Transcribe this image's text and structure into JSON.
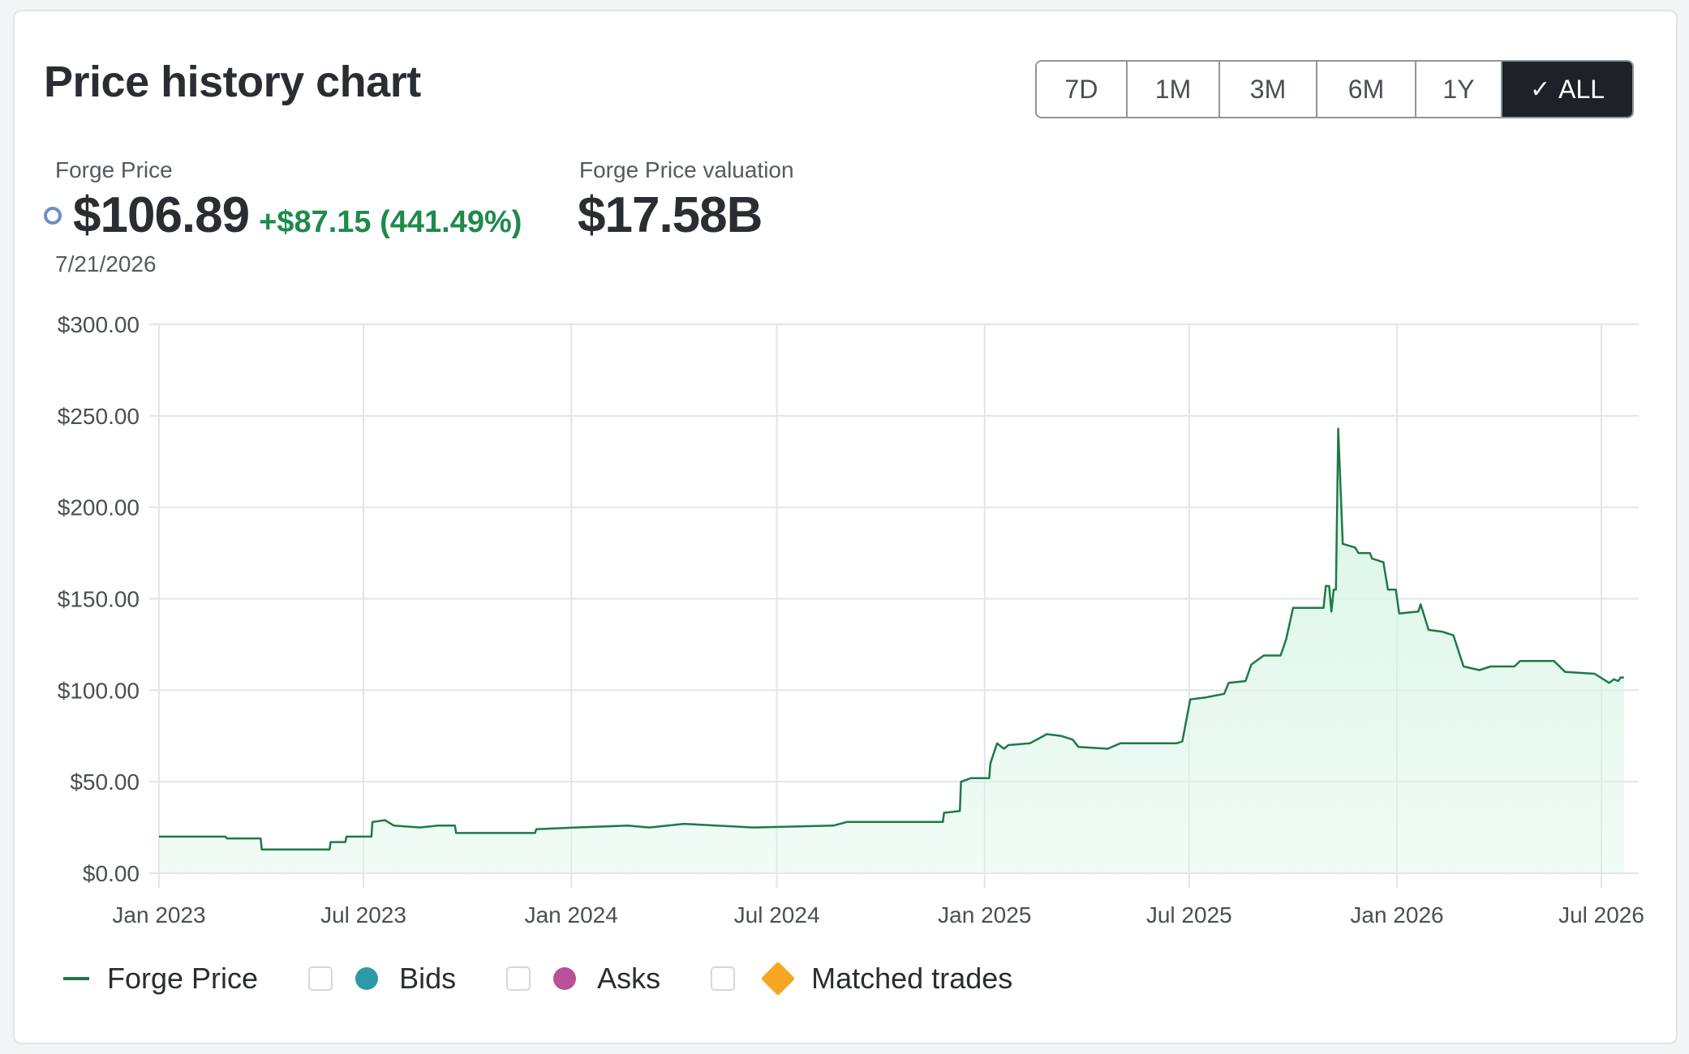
{
  "header": {
    "title": "Price history chart"
  },
  "range_buttons": {
    "items": [
      "7D",
      "1M",
      "3M",
      "6M",
      "1Y",
      "ALL"
    ],
    "active": "ALL",
    "check_glyph": "✓"
  },
  "stats": {
    "price_label": "Forge Price",
    "price_value": "$106.89",
    "price_change": "+$87.15 (441.49%)",
    "price_date": "7/21/2026",
    "valuation_label": "Forge Price valuation",
    "valuation_value": "$17.58B"
  },
  "legend": {
    "forge_price": "Forge Price",
    "bids": "Bids",
    "asks": "Asks",
    "matched_trades": "Matched trades"
  },
  "colors": {
    "line": "#1e7a46",
    "fill": "#d8f5e6",
    "positive": "#1e8a4c",
    "bids": "#2e9aa8",
    "asks": "#b8509a",
    "matched_trades": "#f5a623",
    "grid": "#e3e5e8"
  },
  "chart_data": {
    "type": "area",
    "ylim": [
      0,
      300
    ],
    "y_ticks": [
      "$0.00",
      "$50.00",
      "$100.00",
      "$150.00",
      "$200.00",
      "$250.00",
      "$300.00"
    ],
    "x_ticks": [
      {
        "label": "Jan 2023",
        "date": "2023-01-01"
      },
      {
        "label": "Jul 2023",
        "date": "2023-07-01"
      },
      {
        "label": "Jan 2024",
        "date": "2024-01-01"
      },
      {
        "label": "Jul 2024",
        "date": "2024-07-01"
      },
      {
        "label": "Jan 2025",
        "date": "2025-01-01"
      },
      {
        "label": "Jul 2025",
        "date": "2025-07-01"
      },
      {
        "label": "Jan 2026",
        "date": "2026-01-01"
      },
      {
        "label": "Jul 2026",
        "date": "2026-07-01"
      }
    ],
    "xlim": [
      "2023-01-01",
      "2026-07-21"
    ],
    "grid": true,
    "legend_position": "bottom-left",
    "series": [
      {
        "name": "Forge Price",
        "points": [
          [
            "2023-01-01",
            20
          ],
          [
            "2023-03-01",
            20
          ],
          [
            "2023-03-02",
            19
          ],
          [
            "2023-04-01",
            19
          ],
          [
            "2023-04-02",
            13
          ],
          [
            "2023-06-01",
            13
          ],
          [
            "2023-06-02",
            17
          ],
          [
            "2023-06-15",
            17
          ],
          [
            "2023-06-16",
            20
          ],
          [
            "2023-07-08",
            20
          ],
          [
            "2023-07-09",
            28
          ],
          [
            "2023-07-20",
            29
          ],
          [
            "2023-07-28",
            26
          ],
          [
            "2023-08-20",
            25
          ],
          [
            "2023-09-05",
            26
          ],
          [
            "2023-09-20",
            26
          ],
          [
            "2023-09-21",
            22
          ],
          [
            "2023-11-30",
            22
          ],
          [
            "2023-12-01",
            24
          ],
          [
            "2024-01-05",
            25
          ],
          [
            "2024-02-20",
            26
          ],
          [
            "2024-03-10",
            25
          ],
          [
            "2024-04-10",
            27
          ],
          [
            "2024-06-10",
            25
          ],
          [
            "2024-08-20",
            26
          ],
          [
            "2024-09-01",
            28
          ],
          [
            "2024-11-25",
            28
          ],
          [
            "2024-11-26",
            33
          ],
          [
            "2024-12-10",
            34
          ],
          [
            "2024-12-11",
            50
          ],
          [
            "2024-12-20",
            52
          ],
          [
            "2025-01-05",
            52
          ],
          [
            "2025-01-06",
            60
          ],
          [
            "2025-01-12",
            71
          ],
          [
            "2025-01-18",
            68
          ],
          [
            "2025-01-22",
            70
          ],
          [
            "2025-02-10",
            71
          ],
          [
            "2025-02-25",
            76
          ],
          [
            "2025-03-10",
            75
          ],
          [
            "2025-03-20",
            73
          ],
          [
            "2025-03-25",
            69
          ],
          [
            "2025-04-20",
            68
          ],
          [
            "2025-05-01",
            71
          ],
          [
            "2025-06-20",
            71
          ],
          [
            "2025-06-25",
            72
          ],
          [
            "2025-07-02",
            95
          ],
          [
            "2025-07-15",
            96
          ],
          [
            "2025-08-01",
            98
          ],
          [
            "2025-08-05",
            104
          ],
          [
            "2025-08-20",
            105
          ],
          [
            "2025-08-25",
            114
          ],
          [
            "2025-09-05",
            119
          ],
          [
            "2025-09-20",
            119
          ],
          [
            "2025-09-25",
            128
          ],
          [
            "2025-10-01",
            145
          ],
          [
            "2025-10-28",
            145
          ],
          [
            "2025-10-30",
            157
          ],
          [
            "2025-11-02",
            157
          ],
          [
            "2025-11-04",
            143
          ],
          [
            "2025-11-06",
            155
          ],
          [
            "2025-11-08",
            155
          ],
          [
            "2025-11-10",
            243
          ],
          [
            "2025-11-14",
            180
          ],
          [
            "2025-11-25",
            178
          ],
          [
            "2025-11-28",
            175
          ],
          [
            "2025-12-08",
            175
          ],
          [
            "2025-12-10",
            172
          ],
          [
            "2025-12-20",
            170
          ],
          [
            "2025-12-24",
            155
          ],
          [
            "2025-12-31",
            155
          ],
          [
            "2026-01-03",
            142
          ],
          [
            "2026-01-20",
            143
          ],
          [
            "2026-01-22",
            147
          ],
          [
            "2026-01-29",
            133
          ],
          [
            "2026-02-10",
            132
          ],
          [
            "2026-02-20",
            130
          ],
          [
            "2026-03-01",
            113
          ],
          [
            "2026-03-15",
            111
          ],
          [
            "2026-03-25",
            113
          ],
          [
            "2026-04-15",
            113
          ],
          [
            "2026-04-20",
            116
          ],
          [
            "2026-05-15",
            116
          ],
          [
            "2026-05-20",
            116
          ],
          [
            "2026-05-30",
            110
          ],
          [
            "2026-06-25",
            109
          ],
          [
            "2026-07-08",
            104
          ],
          [
            "2026-07-12",
            106
          ],
          [
            "2026-07-16",
            105
          ],
          [
            "2026-07-18",
            107
          ],
          [
            "2026-07-21",
            106.89
          ]
        ]
      }
    ]
  }
}
